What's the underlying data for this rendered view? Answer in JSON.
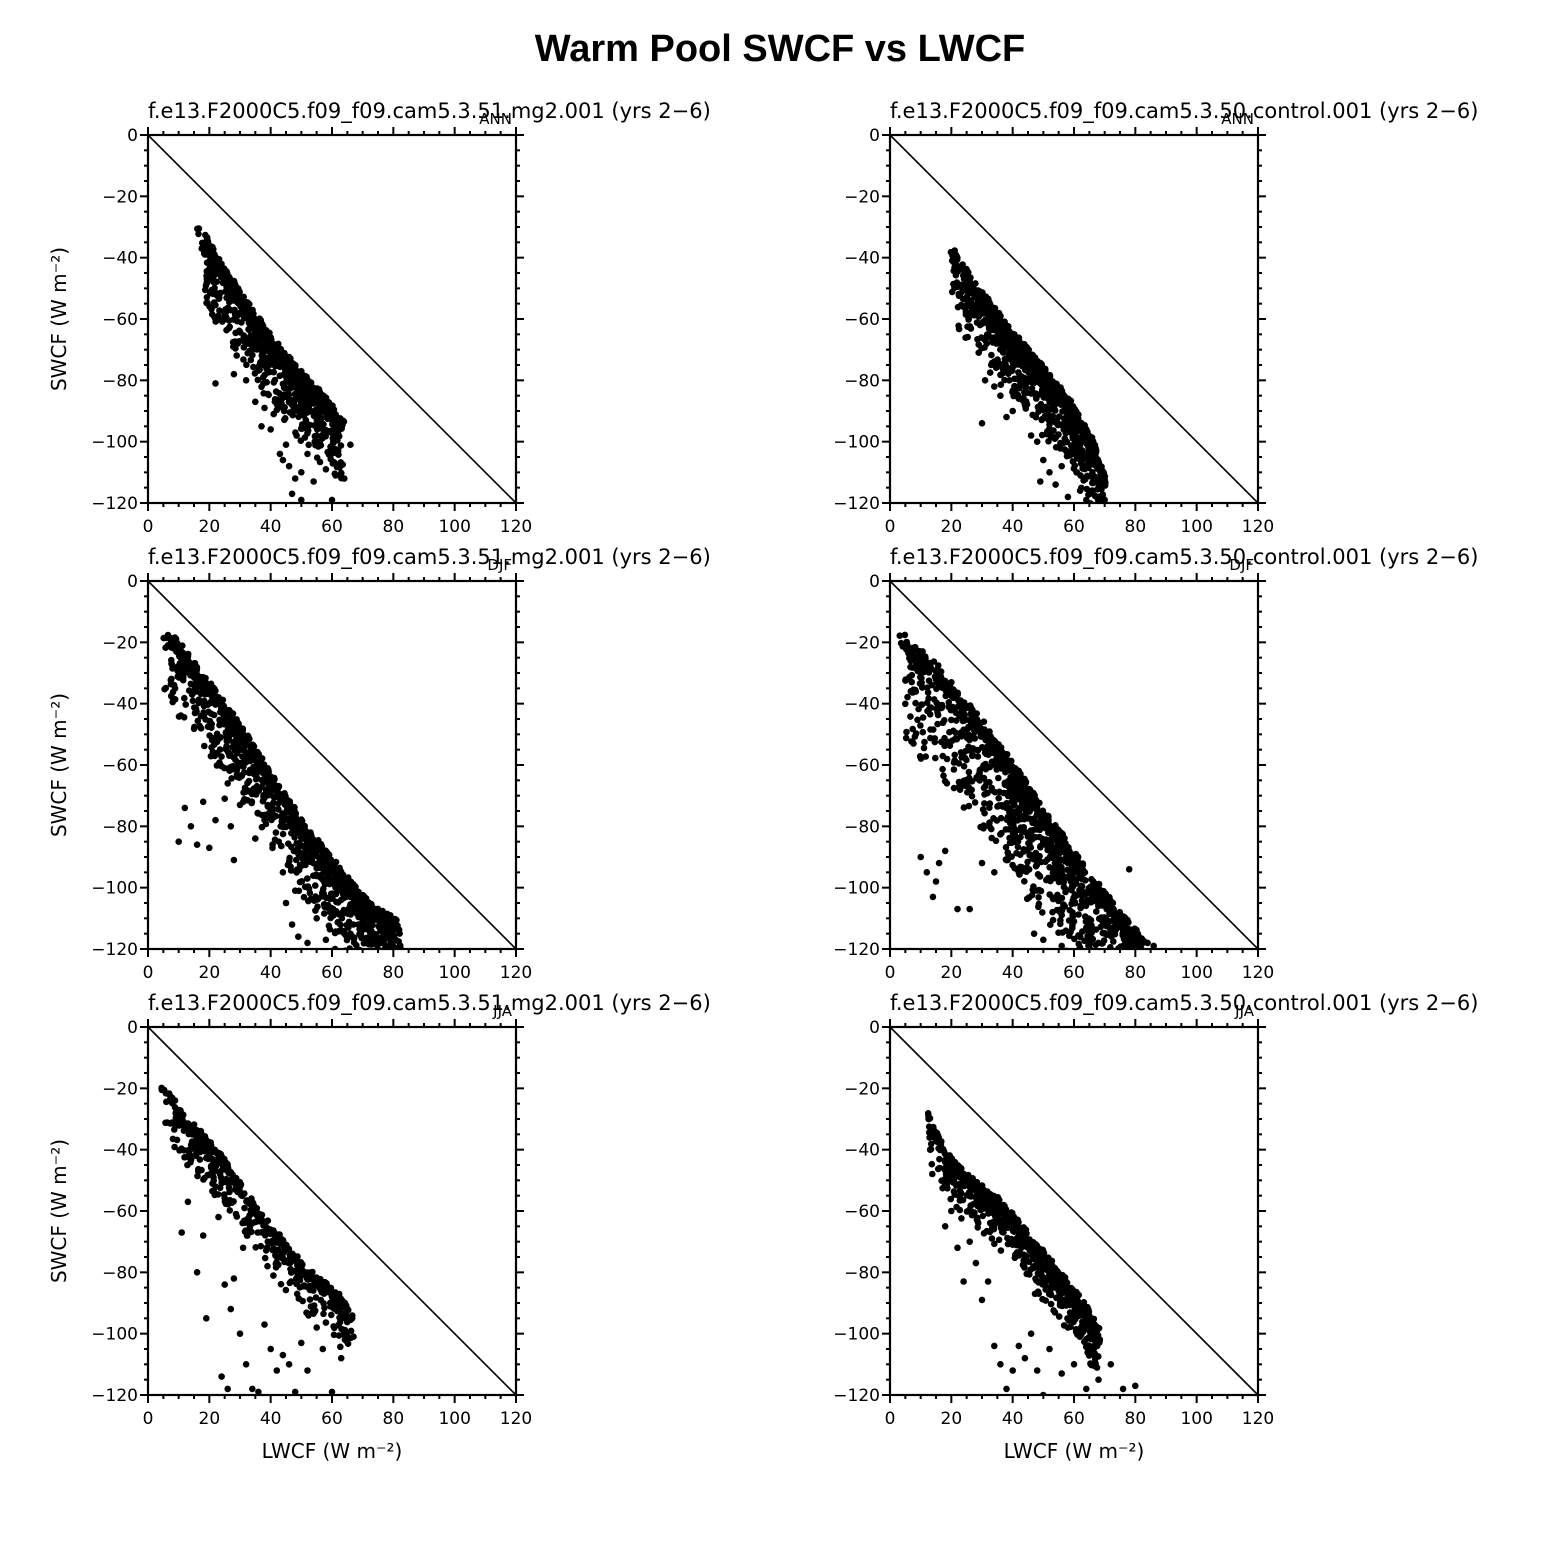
{
  "title": "Warm Pool SWCF vs LWCF",
  "chart_data": [
    {
      "type": "scatter",
      "panel": "top-left",
      "title": "f.e13.F2000C5.f09_f09.cam5.3.51.mg2.001 (yrs 2−6)",
      "season": "ANN",
      "ylabel": "SWCF (W m⁻²)",
      "xlabel": "",
      "xlim": [
        0,
        120
      ],
      "ylim": [
        -120,
        0
      ],
      "xticks": [
        "0",
        "20",
        "40",
        "60",
        "80",
        "100",
        "120"
      ],
      "yticks": [
        "0",
        "−20",
        "−40",
        "−60",
        "−80",
        "−100",
        "−120"
      ],
      "reference_line": "y = -x",
      "cloud": {
        "seed": 11,
        "n": 900,
        "ridge": [
          [
            17,
            -31
          ],
          [
            25,
            -45
          ],
          [
            35,
            -60
          ],
          [
            45,
            -73
          ],
          [
            55,
            -84
          ],
          [
            63,
            -93
          ]
        ],
        "spread": 4,
        "band": 20,
        "outliers": [
          [
            22,
            -81
          ],
          [
            28,
            -78
          ],
          [
            32,
            -80
          ],
          [
            35,
            -87
          ],
          [
            38,
            -89
          ],
          [
            40,
            -96
          ],
          [
            43,
            -104
          ],
          [
            45,
            -101
          ],
          [
            46,
            -108
          ],
          [
            48,
            -112
          ],
          [
            50,
            -110
          ],
          [
            52,
            -104
          ],
          [
            54,
            -113
          ],
          [
            56,
            -100
          ],
          [
            58,
            -109
          ],
          [
            60,
            -119
          ],
          [
            62,
            -104
          ],
          [
            64,
            -112
          ],
          [
            66,
            -101
          ],
          [
            50,
            -119
          ],
          [
            47,
            -117
          ],
          [
            44,
            -106
          ],
          [
            41,
            -91
          ],
          [
            37,
            -95
          ]
        ]
      }
    },
    {
      "type": "scatter",
      "panel": "top-right",
      "title": "f.e13.F2000C5.f09_f09.cam5.3.50.control.001 (yrs 2−6)",
      "season": "ANN",
      "ylabel": "",
      "xlabel": "",
      "xlim": [
        0,
        120
      ],
      "ylim": [
        -120,
        0
      ],
      "xticks": [
        "0",
        "20",
        "40",
        "60",
        "80",
        "100",
        "120"
      ],
      "yticks": [
        "0",
        "−20",
        "−40",
        "−60",
        "−80",
        "−100",
        "−120"
      ],
      "reference_line": "y = -x",
      "cloud": {
        "seed": 23,
        "n": 1000,
        "ridge": [
          [
            20,
            -38
          ],
          [
            28,
            -50
          ],
          [
            38,
            -63
          ],
          [
            48,
            -75
          ],
          [
            58,
            -87
          ],
          [
            66,
            -100
          ],
          [
            70,
            -112
          ]
        ],
        "spread": 4,
        "band": 20,
        "outliers": [
          [
            30,
            -94
          ],
          [
            31,
            -80
          ],
          [
            34,
            -82
          ],
          [
            36,
            -85
          ],
          [
            38,
            -92
          ],
          [
            40,
            -90
          ],
          [
            42,
            -86
          ],
          [
            44,
            -88
          ],
          [
            46,
            -98
          ],
          [
            48,
            -100
          ],
          [
            50,
            -106
          ],
          [
            52,
            -110
          ],
          [
            54,
            -114
          ],
          [
            56,
            -108
          ],
          [
            58,
            -118
          ],
          [
            60,
            -104
          ],
          [
            62,
            -116
          ],
          [
            64,
            -119
          ],
          [
            66,
            -110
          ],
          [
            68,
            -118
          ],
          [
            70,
            -119
          ],
          [
            57,
            -99
          ],
          [
            52,
            -97
          ],
          [
            49,
            -113
          ]
        ]
      }
    },
    {
      "type": "scatter",
      "panel": "middle-left",
      "title": "f.e13.F2000C5.f09_f09.cam5.3.51.mg2.001 (yrs 2−6)",
      "season": "DJF",
      "ylabel": "SWCF (W m⁻²)",
      "xlabel": "",
      "xlim": [
        0,
        120
      ],
      "ylim": [
        -120,
        0
      ],
      "xticks": [
        "0",
        "20",
        "40",
        "60",
        "80",
        "100",
        "120"
      ],
      "yticks": [
        "0",
        "−20",
        "−40",
        "−60",
        "−80",
        "−100",
        "−120"
      ],
      "reference_line": "y = -x",
      "cloud": {
        "seed": 37,
        "n": 1200,
        "ridge": [
          [
            5,
            -15
          ],
          [
            15,
            -28
          ],
          [
            28,
            -45
          ],
          [
            40,
            -64
          ],
          [
            52,
            -82
          ],
          [
            64,
            -97
          ],
          [
            74,
            -108
          ],
          [
            82,
            -113
          ]
        ],
        "spread": 4,
        "band": 22,
        "outliers": [
          [
            10,
            -85
          ],
          [
            12,
            -74
          ],
          [
            14,
            -80
          ],
          [
            16,
            -86
          ],
          [
            18,
            -72
          ],
          [
            20,
            -87
          ],
          [
            22,
            -78
          ],
          [
            25,
            -71
          ],
          [
            27,
            -80
          ],
          [
            30,
            -73
          ],
          [
            35,
            -84
          ],
          [
            28,
            -91
          ],
          [
            45,
            -105
          ],
          [
            47,
            -112
          ],
          [
            49,
            -116
          ],
          [
            52,
            -118
          ],
          [
            55,
            -110
          ],
          [
            58,
            -117
          ],
          [
            61,
            -120
          ],
          [
            63,
            -114
          ],
          [
            66,
            -115
          ],
          [
            70,
            -111
          ],
          [
            74,
            -118
          ],
          [
            77,
            -117
          ],
          [
            79,
            -109
          ],
          [
            44,
            -95
          ],
          [
            48,
            -101
          ],
          [
            26,
            -66
          ]
        ]
      }
    },
    {
      "type": "scatter",
      "panel": "middle-right",
      "title": "f.e13.F2000C5.f09_f09.cam5.3.50.control.001 (yrs 2−6)",
      "season": "DJF",
      "ylabel": "",
      "xlabel": "",
      "xlim": [
        0,
        120
      ],
      "ylim": [
        -120,
        0
      ],
      "xticks": [
        "0",
        "20",
        "40",
        "60",
        "80",
        "100",
        "120"
      ],
      "yticks": [
        "0",
        "−20",
        "−40",
        "−60",
        "−80",
        "−100",
        "−120"
      ],
      "reference_line": "y = -x",
      "cloud": {
        "seed": 51,
        "n": 1300,
        "ridge": [
          [
            4,
            -19
          ],
          [
            14,
            -28
          ],
          [
            26,
            -42
          ],
          [
            38,
            -58
          ],
          [
            50,
            -76
          ],
          [
            62,
            -93
          ],
          [
            72,
            -106
          ],
          [
            82,
            -118
          ]
        ],
        "spread": 5,
        "band": 34,
        "outliers": [
          [
            10,
            -90
          ],
          [
            12,
            -95
          ],
          [
            14,
            -103
          ],
          [
            15,
            -98
          ],
          [
            16,
            -92
          ],
          [
            18,
            -88
          ],
          [
            22,
            -107
          ],
          [
            26,
            -107
          ],
          [
            30,
            -92
          ],
          [
            34,
            -95
          ],
          [
            38,
            -91
          ],
          [
            42,
            -95
          ],
          [
            47,
            -115
          ],
          [
            50,
            -117
          ],
          [
            53,
            -108
          ],
          [
            56,
            -119
          ],
          [
            60,
            -111
          ],
          [
            64,
            -113
          ],
          [
            68,
            -118
          ],
          [
            72,
            -115
          ],
          [
            76,
            -119
          ],
          [
            80,
            -120
          ],
          [
            84,
            -118
          ],
          [
            86,
            -119
          ],
          [
            78,
            -94
          ],
          [
            71,
            -103
          ]
        ]
      }
    },
    {
      "type": "scatter",
      "panel": "bottom-left",
      "title": "f.e13.F2000C5.f09_f09.cam5.3.51.mg2.001 (yrs 2−6)",
      "season": "JJA",
      "ylabel": "SWCF (W m⁻²)",
      "xlabel": "LWCF (W m⁻²)",
      "xlim": [
        0,
        120
      ],
      "ylim": [
        -120,
        0
      ],
      "xticks": [
        "0",
        "20",
        "40",
        "60",
        "80",
        "100",
        "120"
      ],
      "yticks": [
        "0",
        "−20",
        "−40",
        "−60",
        "−80",
        "−100",
        "−120"
      ],
      "reference_line": "y = -x",
      "cloud": {
        "seed": 67,
        "n": 550,
        "ridge": [
          [
            5,
            -20
          ],
          [
            12,
            -30
          ],
          [
            22,
            -40
          ],
          [
            32,
            -55
          ],
          [
            42,
            -68
          ],
          [
            52,
            -80
          ],
          [
            62,
            -88
          ],
          [
            66,
            -94
          ]
        ],
        "spread": 3,
        "band": 14,
        "outliers": [
          [
            11,
            -67
          ],
          [
            13,
            -57
          ],
          [
            16,
            -80
          ],
          [
            18,
            -68
          ],
          [
            19,
            -95
          ],
          [
            22,
            -52
          ],
          [
            23,
            -62
          ],
          [
            25,
            -84
          ],
          [
            27,
            -92
          ],
          [
            28,
            -82
          ],
          [
            30,
            -100
          ],
          [
            31,
            -72
          ],
          [
            32,
            -110
          ],
          [
            34,
            -118
          ],
          [
            36,
            -119
          ],
          [
            38,
            -97
          ],
          [
            40,
            -105
          ],
          [
            42,
            -112
          ],
          [
            44,
            -107
          ],
          [
            46,
            -110
          ],
          [
            48,
            -119
          ],
          [
            50,
            -103
          ],
          [
            52,
            -112
          ],
          [
            55,
            -98
          ],
          [
            57,
            -105
          ],
          [
            60,
            -119
          ],
          [
            63,
            -108
          ],
          [
            67,
            -101
          ],
          [
            24,
            -114
          ],
          [
            26,
            -118
          ]
        ]
      }
    },
    {
      "type": "scatter",
      "panel": "bottom-right",
      "title": "f.e13.F2000C5.f09_f09.cam5.3.50.control.001 (yrs 2−6)",
      "season": "JJA",
      "ylabel": "",
      "xlabel": "LWCF (W m⁻²)",
      "xlim": [
        0,
        120
      ],
      "ylim": [
        -120,
        0
      ],
      "xticks": [
        "0",
        "20",
        "40",
        "60",
        "80",
        "100",
        "120"
      ],
      "yticks": [
        "0",
        "−20",
        "−40",
        "−60",
        "−80",
        "−100",
        "−120"
      ],
      "reference_line": "y = -x",
      "cloud": {
        "seed": 83,
        "n": 750,
        "ridge": [
          [
            12,
            -28
          ],
          [
            18,
            -42
          ],
          [
            28,
            -52
          ],
          [
            36,
            -58
          ],
          [
            46,
            -70
          ],
          [
            56,
            -82
          ],
          [
            64,
            -92
          ],
          [
            68,
            -100
          ]
        ],
        "spread": 4,
        "band": 14,
        "outliers": [
          [
            18,
            -65
          ],
          [
            20,
            -60
          ],
          [
            22,
            -72
          ],
          [
            24,
            -83
          ],
          [
            26,
            -70
          ],
          [
            28,
            -77
          ],
          [
            30,
            -89
          ],
          [
            32,
            -83
          ],
          [
            34,
            -104
          ],
          [
            36,
            -110
          ],
          [
            38,
            -118
          ],
          [
            40,
            -112
          ],
          [
            42,
            -104
          ],
          [
            44,
            -108
          ],
          [
            46,
            -100
          ],
          [
            48,
            -112
          ],
          [
            50,
            -120
          ],
          [
            52,
            -105
          ],
          [
            56,
            -113
          ],
          [
            60,
            -110
          ],
          [
            64,
            -118
          ],
          [
            68,
            -115
          ],
          [
            72,
            -110
          ],
          [
            76,
            -118
          ],
          [
            80,
            -117
          ],
          [
            58,
            -98
          ]
        ]
      }
    }
  ]
}
